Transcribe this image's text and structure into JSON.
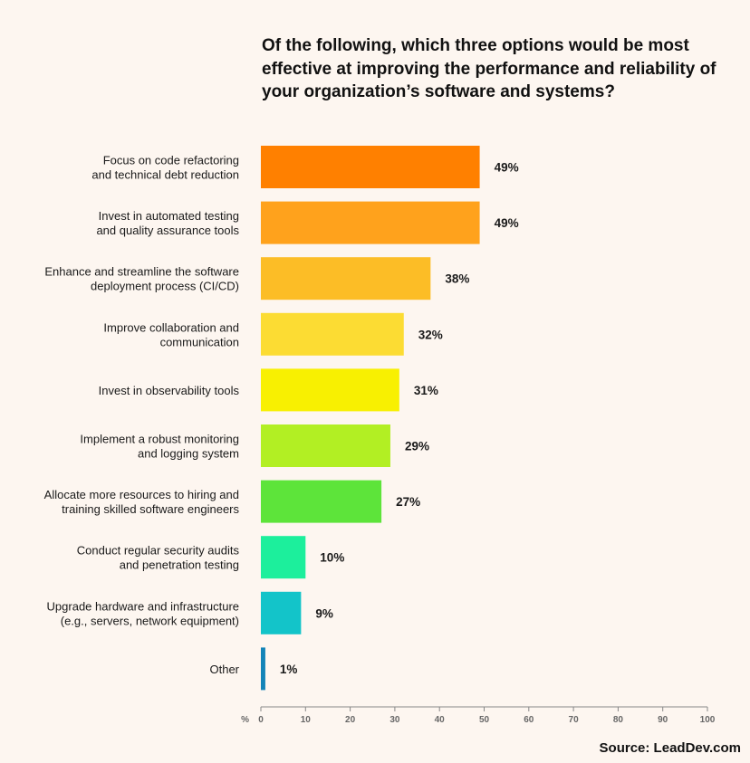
{
  "title": "Of the following, which three options would be most effective at improving the performance and reliability of your organization’s software and systems?",
  "source": "Source: LeadDev.com",
  "chart_data": {
    "type": "bar",
    "orientation": "horizontal",
    "title": "Of the following, which three options would be most effective at improving the performance and reliability of your organization’s software and systems?",
    "xlabel": "%",
    "ylabel": "",
    "xlim": [
      0,
      100
    ],
    "xticks": [
      0,
      10,
      20,
      30,
      40,
      50,
      60,
      70,
      80,
      90,
      100
    ],
    "categories": [
      [
        "Focus on code refactoring",
        "and technical debt reduction"
      ],
      [
        "Invest in automated testing",
        "and quality assurance tools"
      ],
      [
        "Enhance and streamline the software",
        "deployment process (CI/CD)"
      ],
      [
        "Improve collaboration and",
        "communication"
      ],
      [
        "Invest in observability tools"
      ],
      [
        "Implement a robust monitoring",
        "and logging system"
      ],
      [
        "Allocate more resources to hiring and",
        "training skilled software engineers"
      ],
      [
        "Conduct regular security audits",
        "and penetration testing"
      ],
      [
        "Upgrade hardware and infrastructure",
        "(e.g., servers, network equipment)"
      ],
      [
        "Other"
      ]
    ],
    "values": [
      49,
      49,
      38,
      32,
      31,
      29,
      27,
      10,
      9,
      1
    ],
    "value_labels": [
      "49%",
      "49%",
      "38%",
      "32%",
      "31%",
      "29%",
      "27%",
      "10%",
      "9%",
      "1%"
    ],
    "colors": [
      "#ff8000",
      "#ffa21c",
      "#fcbd26",
      "#fcdc33",
      "#f8f001",
      "#b2ef23",
      "#5de43a",
      "#1cef9c",
      "#13c4c9",
      "#1384b8"
    ],
    "grid": false
  }
}
